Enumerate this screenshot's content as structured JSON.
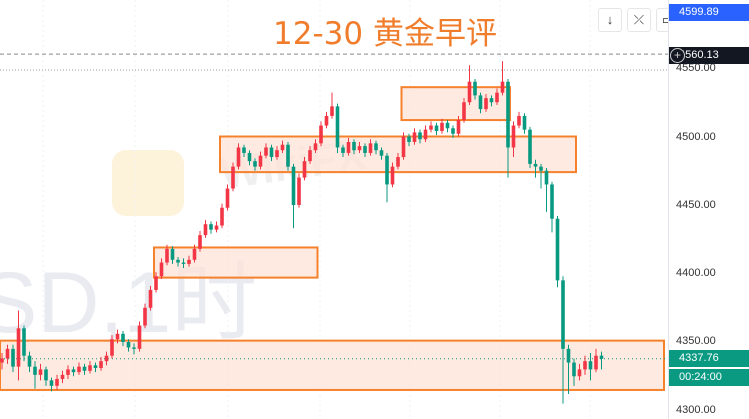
{
  "title": "12-30 黄金早评",
  "toolbar": {
    "buttons": [
      {
        "name": "scroll-to-latest",
        "icon": "arrow-down-icon",
        "glyph": "↓"
      },
      {
        "name": "auto-scale",
        "icon": "collapse-icon",
        "glyph": "⤫"
      },
      {
        "name": "fullscreen",
        "icon": "fullscreen-icon",
        "glyph": "▭"
      }
    ]
  },
  "watermark": {
    "symbol_text": "SD,1时",
    "brand": "WikiFX"
  },
  "axis": {
    "ticks": [
      "4550.00",
      "4500.00",
      "4450.00",
      "4400.00",
      "4350.00",
      "4300.00"
    ],
    "tick_values": [
      4550,
      4500,
      4450,
      4400,
      4350,
      4300
    ],
    "high_label": "4599.89",
    "crosshair_label": "4560.13",
    "last_price_label": "4337.76",
    "countdown": "00:24:00"
  },
  "colors": {
    "up": "#f23645",
    "down": "#089981",
    "zone_border": "#f5812d",
    "zone_fill": "#fde3d6",
    "title": "#f07d2c",
    "high_label_bg": "#2962ff",
    "last_price_bg": "#0a9981"
  },
  "chart_data": {
    "type": "candlestick",
    "title": "12-30 黄金早评",
    "ylim": [
      4295,
      4600
    ],
    "grid": true,
    "ohlc": [
      [
        4335,
        4342,
        4330,
        4338
      ],
      [
        4338,
        4348,
        4334,
        4345
      ],
      [
        4345,
        4348,
        4328,
        4332
      ],
      [
        4332,
        4373,
        4322,
        4360
      ],
      [
        4360,
        4362,
        4336,
        4340
      ],
      [
        4340,
        4343,
        4328,
        4332
      ],
      [
        4332,
        4336,
        4316,
        4326
      ],
      [
        4326,
        4334,
        4322,
        4330
      ],
      [
        4330,
        4332,
        4318,
        4322
      ],
      [
        4322,
        4324,
        4314,
        4318
      ],
      [
        4318,
        4326,
        4315,
        4323
      ],
      [
        4323,
        4329,
        4320,
        4326
      ],
      [
        4326,
        4333,
        4323,
        4330
      ],
      [
        4330,
        4332,
        4325,
        4328
      ],
      [
        4328,
        4335,
        4326,
        4332
      ],
      [
        4332,
        4334,
        4326,
        4329
      ],
      [
        4329,
        4336,
        4327,
        4333
      ],
      [
        4333,
        4335,
        4328,
        4331
      ],
      [
        4331,
        4339,
        4329,
        4336
      ],
      [
        4336,
        4343,
        4333,
        4340
      ],
      [
        4340,
        4355,
        4338,
        4352
      ],
      [
        4352,
        4359,
        4349,
        4356
      ],
      [
        4356,
        4358,
        4347,
        4350
      ],
      [
        4350,
        4352,
        4343,
        4346
      ],
      [
        4346,
        4349,
        4341,
        4345
      ],
      [
        4345,
        4365,
        4343,
        4362
      ],
      [
        4362,
        4378,
        4360,
        4375
      ],
      [
        4375,
        4391,
        4373,
        4388
      ],
      [
        4388,
        4401,
        4386,
        4398
      ],
      [
        4398,
        4411,
        4396,
        4408
      ],
      [
        4408,
        4421,
        4406,
        4418
      ],
      [
        4418,
        4420,
        4407,
        4410
      ],
      [
        4410,
        4412,
        4405,
        4408
      ],
      [
        4408,
        4411,
        4404,
        4407
      ],
      [
        4407,
        4413,
        4405,
        4410
      ],
      [
        4410,
        4421,
        4408,
        4418
      ],
      [
        4418,
        4431,
        4416,
        4428
      ],
      [
        4428,
        4439,
        4426,
        4436
      ],
      [
        4436,
        4438,
        4429,
        4432
      ],
      [
        4432,
        4438,
        4430,
        4435
      ],
      [
        4435,
        4451,
        4433,
        4448
      ],
      [
        4448,
        4465,
        4446,
        4462
      ],
      [
        4462,
        4481,
        4460,
        4478
      ],
      [
        4478,
        4495,
        4476,
        4492
      ],
      [
        4492,
        4494,
        4485,
        4488
      ],
      [
        4488,
        4490,
        4479,
        4482
      ],
      [
        4482,
        4484,
        4475,
        4478
      ],
      [
        4478,
        4489,
        4476,
        4486
      ],
      [
        4486,
        4495,
        4484,
        4492
      ],
      [
        4492,
        4494,
        4482,
        4485
      ],
      [
        4485,
        4493,
        4483,
        4490
      ],
      [
        4490,
        4497,
        4488,
        4494
      ],
      [
        4494,
        4496,
        4475,
        4478
      ],
      [
        4478,
        4480,
        4433,
        4450
      ],
      [
        4450,
        4473,
        4448,
        4470
      ],
      [
        4470,
        4485,
        4468,
        4482
      ],
      [
        4482,
        4493,
        4480,
        4490
      ],
      [
        4490,
        4498,
        4488,
        4495
      ],
      [
        4495,
        4511,
        4493,
        4508
      ],
      [
        4508,
        4518,
        4506,
        4515
      ],
      [
        4515,
        4532,
        4513,
        4522
      ],
      [
        4522,
        4524,
        4488,
        4492
      ],
      [
        4492,
        4494,
        4485,
        4488
      ],
      [
        4488,
        4499,
        4486,
        4496
      ],
      [
        4496,
        4498,
        4487,
        4490
      ],
      [
        4490,
        4496,
        4488,
        4493
      ],
      [
        4493,
        4495,
        4485,
        4488
      ],
      [
        4488,
        4498,
        4486,
        4495
      ],
      [
        4495,
        4497,
        4487,
        4490
      ],
      [
        4490,
        4492,
        4483,
        4486
      ],
      [
        4486,
        4488,
        4452,
        4465
      ],
      [
        4465,
        4481,
        4463,
        4478
      ],
      [
        4478,
        4488,
        4476,
        4485
      ],
      [
        4485,
        4503,
        4483,
        4500
      ],
      [
        4500,
        4502,
        4493,
        4496
      ],
      [
        4496,
        4506,
        4494,
        4503
      ],
      [
        4503,
        4505,
        4495,
        4498
      ],
      [
        4498,
        4508,
        4496,
        4505
      ],
      [
        4505,
        4511,
        4503,
        4508
      ],
      [
        4508,
        4510,
        4501,
        4504
      ],
      [
        4504,
        4513,
        4502,
        4510
      ],
      [
        4510,
        4512,
        4503,
        4506
      ],
      [
        4506,
        4508,
        4499,
        4502
      ],
      [
        4502,
        4515,
        4500,
        4512
      ],
      [
        4512,
        4528,
        4510,
        4525
      ],
      [
        4525,
        4552,
        4523,
        4540
      ],
      [
        4540,
        4542,
        4527,
        4530
      ],
      [
        4530,
        4532,
        4517,
        4520
      ],
      [
        4520,
        4531,
        4518,
        4528
      ],
      [
        4528,
        4530,
        4522,
        4525
      ],
      [
        4525,
        4535,
        4523,
        4532
      ],
      [
        4532,
        4555,
        4530,
        4540
      ],
      [
        4540,
        4542,
        4470,
        4492
      ],
      [
        4492,
        4511,
        4485,
        4508
      ],
      [
        4508,
        4518,
        4506,
        4515
      ],
      [
        4515,
        4517,
        4502,
        4505
      ],
      [
        4505,
        4507,
        4477,
        4480
      ],
      [
        4480,
        4483,
        4470,
        4478
      ],
      [
        4478,
        4480,
        4462,
        4475
      ],
      [
        4475,
        4477,
        4445,
        4465
      ],
      [
        4465,
        4467,
        4430,
        4440
      ],
      [
        4440,
        4442,
        4390,
        4395
      ],
      [
        4395,
        4398,
        4305,
        4345
      ],
      [
        4345,
        4348,
        4312,
        4335
      ],
      [
        4335,
        4338,
        4318,
        4325
      ],
      [
        4325,
        4334,
        4322,
        4330
      ],
      [
        4330,
        4340,
        4326,
        4336
      ],
      [
        4336,
        4342,
        4322,
        4330
      ],
      [
        4330,
        4345,
        4328,
        4340
      ],
      [
        4340,
        4343,
        4330,
        4337.76
      ]
    ],
    "zones": [
      {
        "from_price": 4419,
        "to_price": 4397,
        "from_index": 28,
        "to_index": 57
      },
      {
        "from_price": 4500,
        "to_price": 4474,
        "from_index": 40,
        "to_index": 104
      },
      {
        "from_price": 4536,
        "to_price": 4512,
        "from_index": 73,
        "to_index": 92
      },
      {
        "from_price": 4351,
        "to_price": 4315,
        "from_index": -1,
        "to_index": 120
      }
    ],
    "crosshair_price": 4560.13,
    "high_line_price": 4550,
    "last_price": 4337.76
  }
}
